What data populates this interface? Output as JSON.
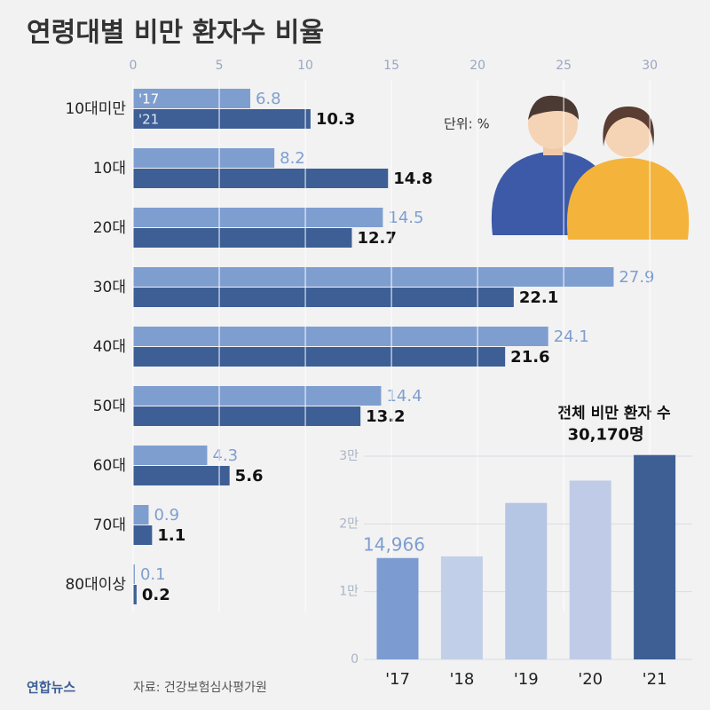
{
  "chart_data": [
    {
      "type": "hbar",
      "title": "연령대별 비만 환자수 비율",
      "unit_label": "단위: %",
      "categories": [
        "10대미만",
        "10대",
        "20대",
        "30대",
        "40대",
        "50대",
        "60대",
        "70대",
        "80대이상"
      ],
      "series": [
        {
          "name": "'17",
          "color": "#7f9ed0",
          "values": [
            6.8,
            8.2,
            14.5,
            27.9,
            24.1,
            14.4,
            4.3,
            0.9,
            0.1
          ]
        },
        {
          "name": "'21",
          "color": "#3d5f96",
          "values": [
            10.3,
            14.8,
            12.7,
            22.1,
            21.6,
            13.2,
            5.6,
            1.1,
            0.2
          ]
        }
      ],
      "xlim": [
        0,
        32
      ],
      "xticks": [
        0,
        5,
        10,
        15,
        20,
        25,
        30
      ],
      "grid": true
    },
    {
      "type": "bar",
      "title": "전체 비만 환자 수",
      "categories": [
        "'17",
        "'18",
        "'19",
        "'20",
        "'21"
      ],
      "values": [
        14966,
        15200,
        23100,
        26400,
        30170
      ],
      "value_labels": [
        "14,966",
        null,
        null,
        null,
        "30,170명"
      ],
      "colors": [
        "#7b9bd1",
        "#c2cfe8",
        "#b5c5e4",
        "#c0cce7",
        "#3e5f94"
      ],
      "ylim": [
        0,
        30000
      ],
      "yticks": [
        0,
        {
          "value": 10000,
          "label": "1만"
        },
        {
          "value": 20000,
          "label": "2만"
        },
        {
          "value": 30000,
          "label": "3만"
        }
      ],
      "source": "자료: 건강보험심사평가원",
      "logo_text": "연합뉴스"
    }
  ]
}
